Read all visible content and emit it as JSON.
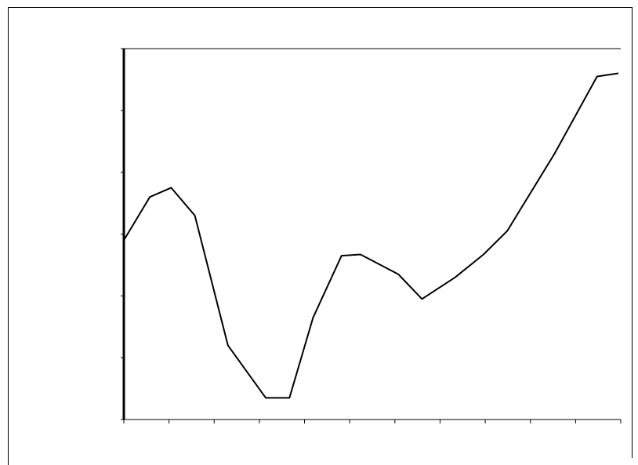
{
  "chart_data": {
    "type": "line",
    "title": "",
    "xlabel": "",
    "ylabel": "",
    "grid": false,
    "legend": "none",
    "ylim": [
      0,
      6
    ],
    "ytick_labels": [
      "",
      "",
      "",
      "",
      "",
      "",
      ""
    ],
    "xtick_labels": [
      "",
      "",
      "",
      "",
      "",
      "",
      "",
      "",
      "",
      "",
      ""
    ],
    "series": [
      {
        "values": [
          2.9,
          3.6,
          3.75,
          3.3,
          1.2,
          0.35,
          0.35,
          1.65,
          2.65,
          2.67,
          2.35,
          1.95,
          2.3,
          2.67,
          3.05,
          4.3,
          5.55,
          5.6
        ],
        "x": [
          0,
          0.55,
          1,
          1.5,
          2.2,
          3.0,
          3.5,
          4.0,
          4.6,
          5.0,
          5.8,
          6.3,
          7.0,
          7.6,
          8.1,
          9.1,
          10.0,
          10.45
        ]
      }
    ],
    "xlim": [
      0,
      10.5
    ],
    "colors": {
      "line": "#000000",
      "axis": "#000000"
    }
  }
}
